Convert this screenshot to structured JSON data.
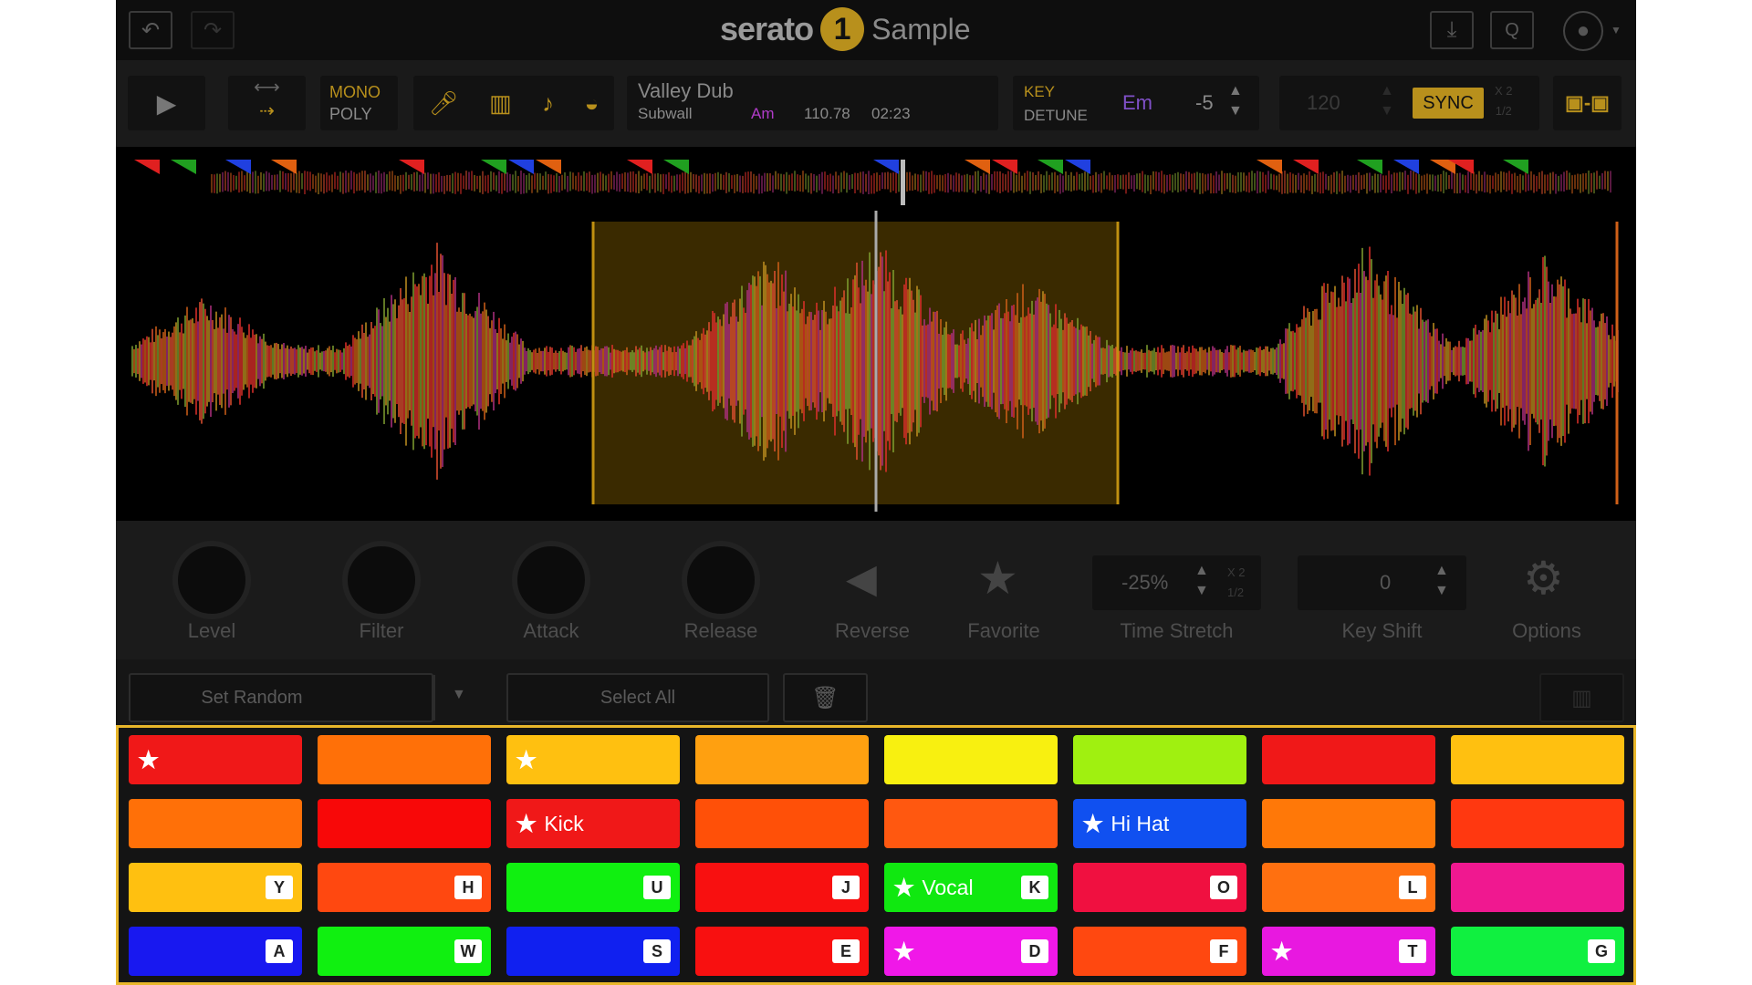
{
  "app": {
    "brand": "serato",
    "brand_mark": "1",
    "product": "Sample"
  },
  "topbar": {
    "undo_icon": "undo-icon",
    "redo_icon": "redo-icon",
    "download_icon": "download-icon",
    "quantize_icon": "q-icon",
    "account_icon": "user-icon"
  },
  "toolbar": {
    "mono": "MONO",
    "poly": "POLY",
    "track_title": "Valley Dub",
    "artist": "Subwall",
    "track_key": "Am",
    "bpm": "110.78",
    "length": "02:23",
    "key_label": "KEY",
    "detune_label": "DETUNE",
    "key_value": "Em",
    "detune_value": "-5",
    "tempo": "120",
    "sync": "SYNC",
    "x2": "X 2",
    "half": "1/2",
    "colors": {
      "accent": "#b8901c",
      "key": "#b03cc8",
      "target_key": "#8050c8"
    }
  },
  "controls": {
    "level": "Level",
    "filter": "Filter",
    "attack": "Attack",
    "release": "Release",
    "reverse": "Reverse",
    "favorite": "Favorite",
    "time_stretch_value": "-25%",
    "x2": "X 2",
    "half": "1/2",
    "time_stretch": "Time Stretch",
    "key_shift_value": "0",
    "key_shift": "Key Shift",
    "options": "Options"
  },
  "actions": {
    "set_random": "Set Random",
    "select_all": "Select All",
    "delete_icon": "trash-icon"
  },
  "pads": [
    [
      {
        "c": "#f01818",
        "star": true
      },
      {
        "c": "#ff7008"
      },
      {
        "c": "#ffc010",
        "star": true
      },
      {
        "c": "#ffa010"
      },
      {
        "c": "#f8f010"
      },
      {
        "c": "#a0f010"
      },
      {
        "c": "#f01818"
      },
      {
        "c": "#ffc010"
      }
    ],
    [
      {
        "c": "#ff7008"
      },
      {
        "c": "#f80808"
      },
      {
        "c": "#f01818",
        "star": true,
        "name": "Kick"
      },
      {
        "c": "#ff5008"
      },
      {
        "c": "#ff5810"
      },
      {
        "c": "#1050f0",
        "star": true,
        "name": "Hi Hat"
      },
      {
        "c": "#ff7808"
      },
      {
        "c": "#ff3810"
      }
    ],
    [
      {
        "c": "#ffc010",
        "key": "Y"
      },
      {
        "c": "#ff4810",
        "key": "H"
      },
      {
        "c": "#10f010",
        "key": "U"
      },
      {
        "c": "#f81010",
        "key": "J"
      },
      {
        "c": "#10e810",
        "star": true,
        "name": "Vocal",
        "key": "K"
      },
      {
        "c": "#f01040",
        "key": "O"
      },
      {
        "c": "#ff7010",
        "key": "L"
      },
      {
        "c": "#f01890"
      }
    ],
    [
      {
        "c": "#1818f0",
        "key": "A"
      },
      {
        "c": "#10f010",
        "key": "W"
      },
      {
        "c": "#1020f0",
        "key": "S"
      },
      {
        "c": "#f81010",
        "key": "E"
      },
      {
        "c": "#f018e8",
        "star": true,
        "key": "D"
      },
      {
        "c": "#ff4810",
        "key": "F"
      },
      {
        "c": "#e818e0",
        "star": true,
        "key": "T"
      },
      {
        "c": "#10f040",
        "key": "G"
      }
    ]
  ]
}
